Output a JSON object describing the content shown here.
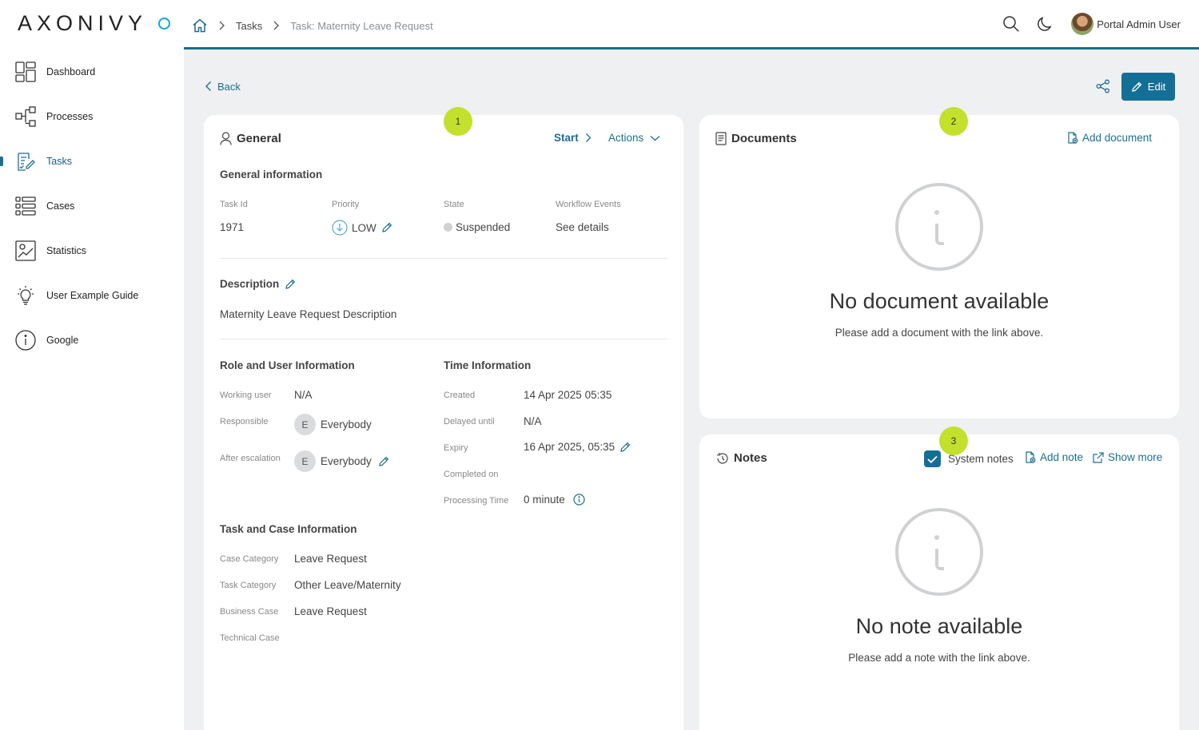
{
  "app": {
    "logo": "AXONIVY"
  },
  "sidebar": {
    "items": [
      {
        "label": "Dashboard",
        "icon": "dashboard-icon"
      },
      {
        "label": "Processes",
        "icon": "processes-icon"
      },
      {
        "label": "Tasks",
        "icon": "tasks-icon",
        "active": true
      },
      {
        "label": "Cases",
        "icon": "cases-icon"
      },
      {
        "label": "Statistics",
        "icon": "statistics-icon"
      },
      {
        "label": "User Example Guide",
        "icon": "lightbulb-icon"
      },
      {
        "label": "Google",
        "icon": "info-icon"
      }
    ]
  },
  "header": {
    "breadcrumb": {
      "tasks": "Tasks",
      "current": "Task: Maternity Leave Request"
    },
    "user_name": "Portal Admin User"
  },
  "toolbar": {
    "back_label": "Back",
    "edit_label": "Edit"
  },
  "markers": {
    "general": "1",
    "documents": "2",
    "notes": "3"
  },
  "general": {
    "title": "General",
    "start_label": "Start",
    "actions_label": "Actions",
    "info_title": "General information",
    "task_id_label": "Task Id",
    "task_id": "1971",
    "priority_label": "Priority",
    "priority": "LOW",
    "state_label": "State",
    "state": "Suspended",
    "workflow_label": "Workflow Events",
    "workflow_link": "See details",
    "description_title": "Description",
    "description": "Maternity Leave Request Description",
    "role_title": "Role and User Information",
    "working_user_label": "Working user",
    "working_user": "N/A",
    "responsible_label": "Responsible",
    "responsible": "Everybody",
    "responsible_initial": "E",
    "after_escalation_label": "After escalation",
    "after_escalation": "Everybody",
    "after_escalation_initial": "E",
    "time_title": "Time Information",
    "created_label": "Created",
    "created": "14 Apr 2025 05:35",
    "delayed_label": "Delayed until",
    "delayed": "N/A",
    "expiry_label": "Expiry",
    "expiry": "16 Apr 2025, 05:35",
    "completed_label": "Completed on",
    "processing_label": "Processing Time",
    "processing": "0 minute",
    "taskcase_title": "Task and Case Information",
    "case_category_label": "Case Category",
    "case_category": "Leave Request",
    "task_category_label": "Task Category",
    "task_category": "Other Leave/Maternity",
    "business_case_label": "Business Case",
    "business_case": "Leave Request",
    "technical_case_label": "Technical Case"
  },
  "documents": {
    "title": "Documents",
    "add_label": "Add document",
    "empty_title": "No document available",
    "empty_sub": "Please add a document with the link above."
  },
  "notes": {
    "title": "Notes",
    "system_notes_label": "System notes",
    "system_notes_checked": true,
    "add_label": "Add note",
    "show_more_label": "Show more",
    "empty_title": "No note available",
    "empty_sub": "Please add a note with the link above."
  },
  "colors": {
    "accent": "#136f95",
    "link": "#1b6e93",
    "marker": "#c3e02c",
    "logo_circle": "#0fa6d8"
  }
}
